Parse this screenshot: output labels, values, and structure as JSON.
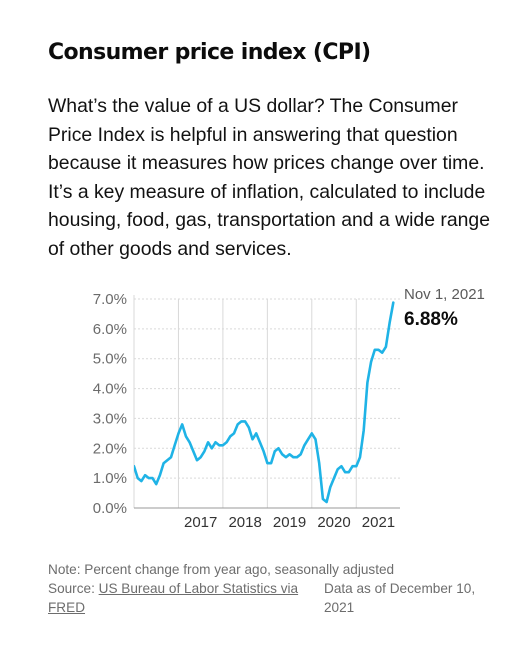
{
  "title": "Consumer price index (CPI)",
  "description": "What’s the value of a US dollar? The Consumer Price Index is helpful in answering that question because it measures how prices change over time. It’s a key measure of inflation, calculated to include housing, food, gas, transportation and a wide range of other goods and services.",
  "notes": {
    "note": "Note: Percent change from year ago, seasonally adjusted",
    "source_prefix": "Source: ",
    "source_link": "US Bureau of Labor Statistics via FRED",
    "data_as_of": "Data as of December 10, 2021"
  },
  "colors": {
    "line": "#1fb3e6",
    "grid": "#d9d9d9",
    "axis": "#999999"
  },
  "chart_data": {
    "type": "line",
    "title": "",
    "xlabel": "",
    "ylabel": "",
    "ylim": [
      0,
      7
    ],
    "xlim": [
      "2016-01-01",
      "2021-12-01"
    ],
    "y_ticks": [
      "0.0%",
      "1.0%",
      "2.0%",
      "3.0%",
      "4.0%",
      "5.0%",
      "6.0%",
      "7.0%"
    ],
    "x_ticks": [
      "2017",
      "2018",
      "2019",
      "2020",
      "2021"
    ],
    "grid": true,
    "annotation": {
      "x": "2021-11-01",
      "date_label": "Nov 1, 2021",
      "value_label": "6.88%"
    },
    "series": [
      {
        "x": [
          "2016-01",
          "2016-02",
          "2016-03",
          "2016-04",
          "2016-05",
          "2016-06",
          "2016-07",
          "2016-08",
          "2016-09",
          "2016-10",
          "2016-11",
          "2016-12",
          "2017-01",
          "2017-02",
          "2017-03",
          "2017-04",
          "2017-05",
          "2017-06",
          "2017-07",
          "2017-08",
          "2017-09",
          "2017-10",
          "2017-11",
          "2017-12",
          "2018-01",
          "2018-02",
          "2018-03",
          "2018-04",
          "2018-05",
          "2018-06",
          "2018-07",
          "2018-08",
          "2018-09",
          "2018-10",
          "2018-11",
          "2018-12",
          "2019-01",
          "2019-02",
          "2019-03",
          "2019-04",
          "2019-05",
          "2019-06",
          "2019-07",
          "2019-08",
          "2019-09",
          "2019-10",
          "2019-11",
          "2019-12",
          "2020-01",
          "2020-02",
          "2020-03",
          "2020-04",
          "2020-05",
          "2020-06",
          "2020-07",
          "2020-08",
          "2020-09",
          "2020-10",
          "2020-11",
          "2020-12",
          "2021-01",
          "2021-02",
          "2021-03",
          "2021-04",
          "2021-05",
          "2021-06",
          "2021-07",
          "2021-08",
          "2021-09",
          "2021-10",
          "2021-11"
        ],
        "y": [
          1.4,
          1.0,
          0.9,
          1.1,
          1.0,
          1.0,
          0.8,
          1.1,
          1.5,
          1.6,
          1.7,
          2.1,
          2.5,
          2.8,
          2.4,
          2.2,
          1.9,
          1.6,
          1.7,
          1.9,
          2.2,
          2.0,
          2.2,
          2.1,
          2.1,
          2.2,
          2.4,
          2.5,
          2.8,
          2.9,
          2.9,
          2.7,
          2.3,
          2.5,
          2.2,
          1.9,
          1.5,
          1.5,
          1.9,
          2.0,
          1.8,
          1.7,
          1.8,
          1.7,
          1.7,
          1.8,
          2.1,
          2.3,
          2.5,
          2.3,
          1.5,
          0.3,
          0.2,
          0.7,
          1.0,
          1.3,
          1.4,
          1.2,
          1.2,
          1.4,
          1.4,
          1.7,
          2.6,
          4.2,
          4.9,
          5.3,
          5.3,
          5.2,
          5.4,
          6.2,
          6.88
        ]
      }
    ]
  }
}
